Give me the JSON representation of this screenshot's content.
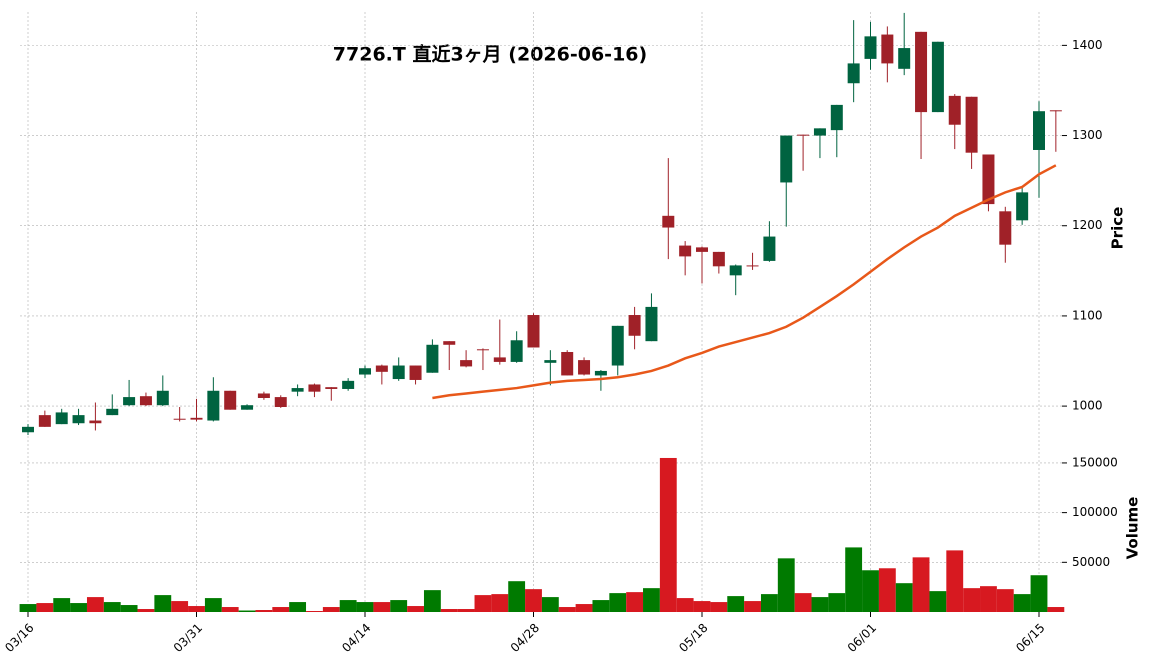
{
  "chart_data": {
    "type": "candlestick",
    "title": "7726.T 直近3ヶ月 (2026-06-16)",
    "categories": [
      "03/16",
      null,
      null,
      null,
      null,
      null,
      null,
      null,
      null,
      null,
      "03/31",
      null,
      null,
      null,
      null,
      null,
      null,
      null,
      null,
      null,
      "04/14",
      null,
      null,
      null,
      null,
      null,
      null,
      null,
      null,
      null,
      "04/28",
      null,
      null,
      null,
      null,
      null,
      null,
      null,
      null,
      null,
      "05/18",
      null,
      null,
      null,
      null,
      null,
      null,
      null,
      null,
      null,
      "06/01",
      null,
      null,
      null,
      null,
      null,
      null,
      null,
      null,
      null,
      "06/15",
      null
    ],
    "open": [
      971,
      990,
      980,
      981,
      984,
      990,
      1001,
      1011,
      1001,
      986,
      987,
      984,
      1017,
      996,
      1014,
      1010,
      1016,
      1024,
      1021,
      1019,
      1035,
      1045,
      1030,
      1045,
      1037,
      1072,
      1051,
      1063,
      1054,
      1049,
      1101,
      1048,
      1060,
      1051,
      1034,
      1045,
      1101,
      1072,
      1211,
      1178,
      1176,
      1171,
      1145,
      1156,
      1161,
      1248,
      1301,
      1300,
      1306,
      1358,
      1385,
      1412,
      1374,
      1415,
      1326,
      1344,
      1343,
      1279,
      1216,
      1206,
      1284,
      1328
    ],
    "high": [
      980,
      995,
      997,
      997,
      1004,
      1013,
      1029,
      1015,
      1034,
      999,
      1008,
      1032,
      1017,
      1002,
      1016,
      1012,
      1024,
      1025,
      1021,
      1031,
      1045,
      1046,
      1054,
      1045,
      1074,
      1072,
      1062,
      1064,
      1096,
      1083,
      1103,
      1062,
      1062,
      1054,
      1040,
      1089,
      1110,
      1125,
      1275,
      1183,
      1177,
      1171,
      1157,
      1170,
      1205,
      1300,
      1301,
      1308,
      1334,
      1428,
      1426,
      1421,
      1436,
      1415,
      1404,
      1346,
      1343,
      1279,
      1221,
      1244,
      1338,
      1328
    ],
    "low": [
      968,
      977,
      980,
      979,
      973,
      990,
      1000,
      1000,
      1000,
      983,
      983,
      983,
      996,
      996,
      1007,
      998,
      1011,
      1010,
      1006,
      1017,
      1031,
      1024,
      1028,
      1024,
      1037,
      1040,
      1043,
      1040,
      1046,
      1048,
      1065,
      1023,
      1034,
      1034,
      1017,
      1034,
      1063,
      1072,
      1163,
      1145,
      1136,
      1147,
      1123,
      1151,
      1160,
      1199,
      1261,
      1275,
      1276,
      1337,
      1373,
      1359,
      1367,
      1274,
      1326,
      1285,
      1263,
      1216,
      1159,
      1201,
      1231,
      1282
    ],
    "close": [
      977,
      977,
      993,
      990,
      981,
      997,
      1010,
      1001,
      1017,
      985,
      985,
      1017,
      996,
      1001,
      1009,
      999,
      1020,
      1016,
      1019,
      1028,
      1042,
      1038,
      1045,
      1029,
      1068,
      1068,
      1044,
      1062,
      1049,
      1073,
      1065,
      1051,
      1034,
      1035,
      1039,
      1089,
      1078,
      1110,
      1198,
      1166,
      1171,
      1155,
      1156,
      1155,
      1188,
      1300,
      1300,
      1308,
      1334,
      1380,
      1410,
      1380,
      1397,
      1326,
      1404,
      1312,
      1281,
      1224,
      1179,
      1237,
      1327,
      1327
    ],
    "moving_average": [
      null,
      null,
      null,
      null,
      null,
      null,
      null,
      null,
      null,
      null,
      null,
      null,
      null,
      null,
      null,
      null,
      null,
      null,
      null,
      null,
      null,
      null,
      null,
      null,
      1009,
      1012,
      1014,
      1016,
      1018,
      1020,
      1023,
      1026,
      1028,
      1029,
      1030,
      1032,
      1035,
      1039,
      1045,
      1053,
      1059,
      1066,
      1071,
      1076,
      1081,
      1088,
      1098,
      1110,
      1122,
      1135,
      1149,
      1163,
      1176,
      1188,
      1198,
      1211,
      1220,
      1229,
      1237,
      1243,
      1257,
      1267
    ],
    "volume": [
      8000,
      9000,
      14000,
      9000,
      15000,
      10000,
      7000,
      3000,
      17000,
      11000,
      6000,
      14000,
      5000,
      1500,
      2000,
      5000,
      10000,
      1000,
      5000,
      12000,
      10000,
      10000,
      12000,
      6000,
      22000,
      3000,
      3000,
      17000,
      18000,
      31000,
      23000,
      15000,
      5000,
      8000,
      12000,
      19000,
      20000,
      24000,
      155000,
      14000,
      11000,
      10000,
      16000,
      11000,
      18000,
      54000,
      19000,
      15000,
      19000,
      65000,
      42000,
      44000,
      29000,
      55000,
      21000,
      62000,
      24000,
      26000,
      23000,
      18000,
      37000,
      5000
    ],
    "ylim": [
      948,
      1437
    ],
    "yticks": [
      1000,
      1100,
      1200,
      1300,
      1400
    ],
    "volume_ylim": [
      0,
      160000
    ],
    "volume_yticks": [
      50000,
      100000,
      150000
    ],
    "ylabel": "Price",
    "volume_label": "Volume",
    "up_color": "#006340",
    "down_color": "#a02128",
    "volume_up_color": "#007a00",
    "volume_down_color": "#d71920",
    "ma_color": "#e8581a",
    "grid": true
  }
}
